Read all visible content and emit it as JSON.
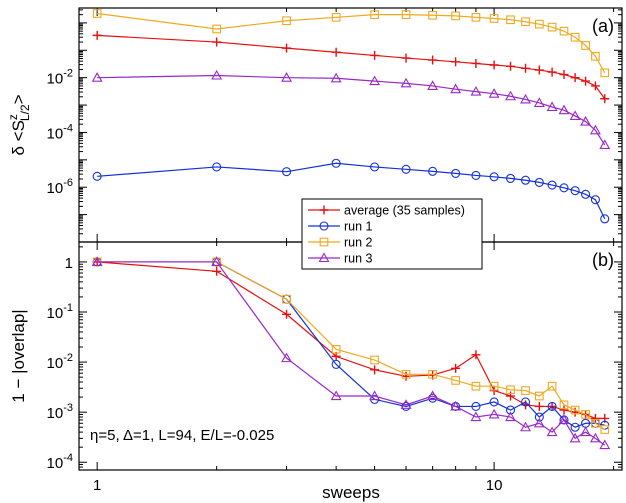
{
  "chart_data": [
    {
      "type": "line",
      "panel_label": "(a)",
      "ylabel": {
        "prefix": "δ <S",
        "sup": "z",
        "sub": "L/2",
        "suffix": ">"
      },
      "xlabel": "",
      "xscale": "log",
      "yscale": "log",
      "xlim": [
        0.9,
        21
      ],
      "ylim": [
        1e-08,
        3.5
      ],
      "yticks": [
        {
          "value": 0.01,
          "base": "10",
          "exp": "-2"
        },
        {
          "value": 0.0001,
          "base": "10",
          "exp": "-4"
        },
        {
          "value": 1e-06,
          "base": "10",
          "exp": "-6"
        }
      ],
      "series": [
        {
          "name": "average (35 samples)",
          "color": "#e8100e",
          "marker": "plus",
          "x": [
            1,
            2,
            3,
            4,
            5,
            6,
            7,
            8,
            9,
            10,
            11,
            12,
            13,
            14,
            15,
            16,
            17,
            18,
            19
          ],
          "y": [
            0.35,
            0.2,
            0.12,
            0.085,
            0.065,
            0.052,
            0.044,
            0.038,
            0.033,
            0.029,
            0.026,
            0.022,
            0.019,
            0.016,
            0.013,
            0.01,
            0.0075,
            0.005,
            0.0017
          ]
        },
        {
          "name": "run 1",
          "color": "#1430dc",
          "marker": "circle",
          "x": [
            1,
            2,
            3,
            4,
            5,
            6,
            7,
            8,
            9,
            10,
            11,
            12,
            13,
            14,
            15,
            16,
            17,
            18,
            19
          ],
          "y": [
            2.5e-06,
            5.5e-06,
            3.7e-06,
            7.5e-06,
            5.5e-06,
            4.5e-06,
            3.8e-06,
            3.2e-06,
            2.7e-06,
            2.4e-06,
            2.1e-06,
            1.8e-06,
            1.5e-06,
            1.2e-06,
            9.5e-07,
            7.5e-07,
            5.5e-07,
            3.5e-07,
            7e-08
          ]
        },
        {
          "name": "run 2",
          "color": "#f0a820",
          "marker": "square",
          "x": [
            1,
            2,
            3,
            4,
            5,
            6,
            7,
            8,
            9,
            10,
            11,
            12,
            13,
            14,
            15,
            16,
            17,
            18,
            19
          ],
          "y": [
            2.2,
            0.6,
            1.2,
            1.6,
            2.0,
            2.0,
            1.9,
            1.8,
            1.6,
            1.45,
            1.3,
            1.1,
            0.9,
            0.7,
            0.5,
            0.3,
            0.15,
            0.06,
            0.015
          ]
        },
        {
          "name": "run 3",
          "color": "#9a28c8",
          "marker": "triangle",
          "x": [
            1,
            2,
            3,
            4,
            5,
            6,
            7,
            8,
            9,
            10,
            11,
            12,
            13,
            14,
            15,
            16,
            17,
            18,
            19
          ],
          "y": [
            0.01,
            0.012,
            0.01,
            0.0095,
            0.0075,
            0.0062,
            0.005,
            0.0038,
            0.0031,
            0.0026,
            0.0021,
            0.0016,
            0.0012,
            0.00085,
            0.00065,
            0.0004,
            0.00025,
            0.00012,
            3.5e-05
          ]
        }
      ],
      "legend": {
        "placement": "bottom-center",
        "entries": [
          "average (35 samples)",
          "run 1",
          "run 2",
          "run 3"
        ]
      }
    },
    {
      "type": "line",
      "panel_label": "(b)",
      "ylabel": "1 − |overlap|",
      "xlabel": "sweeps",
      "xscale": "log",
      "yscale": "log",
      "xlim": [
        0.9,
        21
      ],
      "ylim": [
        7e-05,
        2.5
      ],
      "xticks": [
        {
          "value": 1,
          "label": "1"
        },
        {
          "value": 10,
          "label": "10"
        }
      ],
      "yticks": [
        {
          "value": 1,
          "base": "1",
          "exp": ""
        },
        {
          "value": 0.1,
          "base": "10",
          "exp": "-1"
        },
        {
          "value": 0.01,
          "base": "10",
          "exp": "-2"
        },
        {
          "value": 0.001,
          "base": "10",
          "exp": "-3"
        },
        {
          "value": 0.0001,
          "base": "10",
          "exp": "-4"
        }
      ],
      "annotation": "η=5, Δ=1, L=94, E/L=-0.025",
      "series": [
        {
          "name": "average (35 samples)",
          "color": "#e8100e",
          "marker": "plus",
          "x": [
            1,
            2,
            3,
            4,
            5,
            6,
            7,
            8,
            9,
            10,
            11,
            12,
            13,
            14,
            15,
            16,
            17,
            18,
            19
          ],
          "y": [
            1.0,
            0.65,
            0.09,
            0.013,
            0.007,
            0.0052,
            0.0055,
            0.0075,
            0.014,
            0.0027,
            0.0021,
            0.0014,
            0.0013,
            0.0013,
            0.0011,
            0.001,
            0.0009,
            0.00075,
            0.00075
          ]
        },
        {
          "name": "run 1",
          "color": "#1430dc",
          "marker": "circle",
          "x": [
            1,
            2,
            3,
            4,
            5,
            6,
            7,
            8,
            9,
            10,
            11,
            12,
            13,
            14,
            15,
            16,
            17,
            18,
            19
          ],
          "y": [
            1.0,
            1.0,
            0.18,
            0.009,
            0.0018,
            0.0013,
            0.0019,
            0.0013,
            0.0013,
            0.0016,
            0.0011,
            0.0016,
            0.0008,
            0.0013,
            0.0007,
            0.0005,
            0.0006,
            0.0006,
            0.00055
          ]
        },
        {
          "name": "run 2",
          "color": "#f0a820",
          "marker": "square",
          "x": [
            1,
            2,
            3,
            4,
            5,
            6,
            7,
            8,
            9,
            10,
            11,
            12,
            13,
            14,
            15,
            16,
            17,
            18,
            19
          ],
          "y": [
            1.0,
            1.0,
            0.18,
            0.018,
            0.011,
            0.0057,
            0.0057,
            0.0043,
            0.0033,
            0.0033,
            0.0028,
            0.0027,
            0.0021,
            0.0033,
            0.0014,
            0.0011,
            0.0009,
            0.0006,
            0.00045
          ]
        },
        {
          "name": "run 3",
          "color": "#9a28c8",
          "marker": "triangle",
          "x": [
            1,
            2,
            3,
            4,
            5,
            6,
            7,
            8,
            9,
            10,
            11,
            12,
            13,
            14,
            15,
            16,
            17,
            18,
            19
          ],
          "y": [
            1.0,
            1.0,
            0.012,
            0.0021,
            0.0021,
            0.0014,
            0.0021,
            0.0013,
            0.0008,
            0.0009,
            0.0008,
            0.0005,
            0.0006,
            0.0004,
            0.0007,
            0.0003,
            0.0004,
            0.0003,
            0.00022
          ]
        }
      ]
    }
  ]
}
